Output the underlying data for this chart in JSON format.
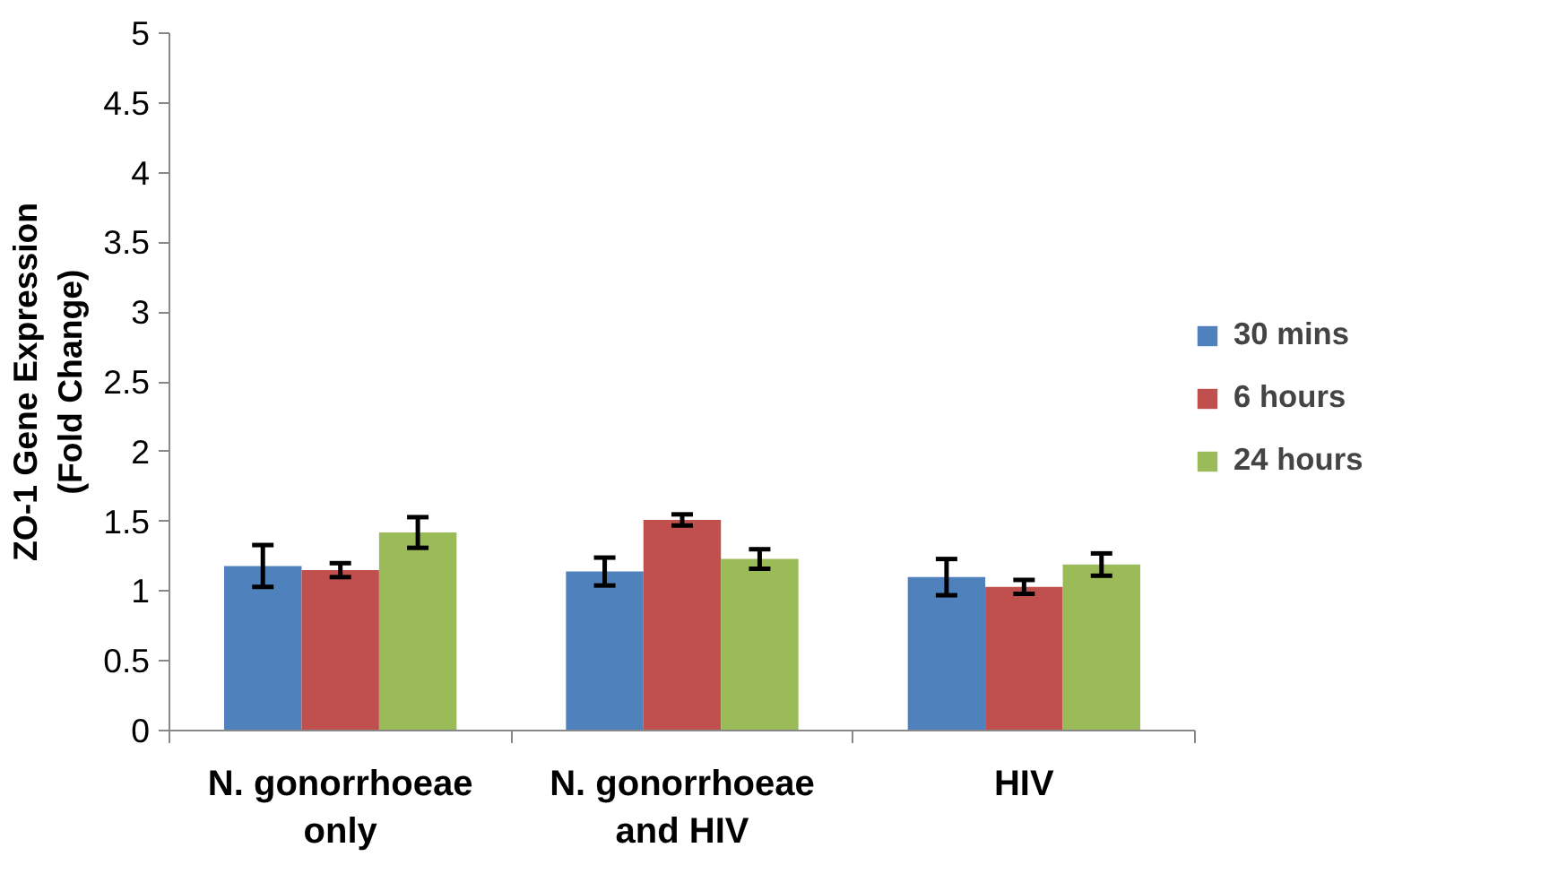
{
  "chart_data": {
    "type": "bar",
    "ylabel": "ZO-1 Gene Expression (Fold Change)",
    "categories": [
      "N. gonorrhoeae only",
      "N. gonorrhoeae and HIV",
      "HIV"
    ],
    "series": [
      {
        "name": "30 mins",
        "color": "#4f81bd",
        "values": [
          1.18,
          1.14,
          1.1
        ],
        "errors": [
          0.15,
          0.1,
          0.13
        ]
      },
      {
        "name": "6 hours",
        "color": "#c0504d",
        "values": [
          1.15,
          1.51,
          1.03
        ],
        "errors": [
          0.05,
          0.04,
          0.05
        ]
      },
      {
        "name": "24 hours",
        "color": "#9bbb59",
        "values": [
          1.42,
          1.23,
          1.19
        ],
        "errors": [
          0.11,
          0.07,
          0.08
        ]
      }
    ],
    "ylim": [
      0,
      5
    ],
    "yticks": [
      0,
      0.5,
      1,
      1.5,
      2,
      2.5,
      3,
      3.5,
      4,
      4.5,
      5
    ],
    "grid": false,
    "legend": "right"
  }
}
